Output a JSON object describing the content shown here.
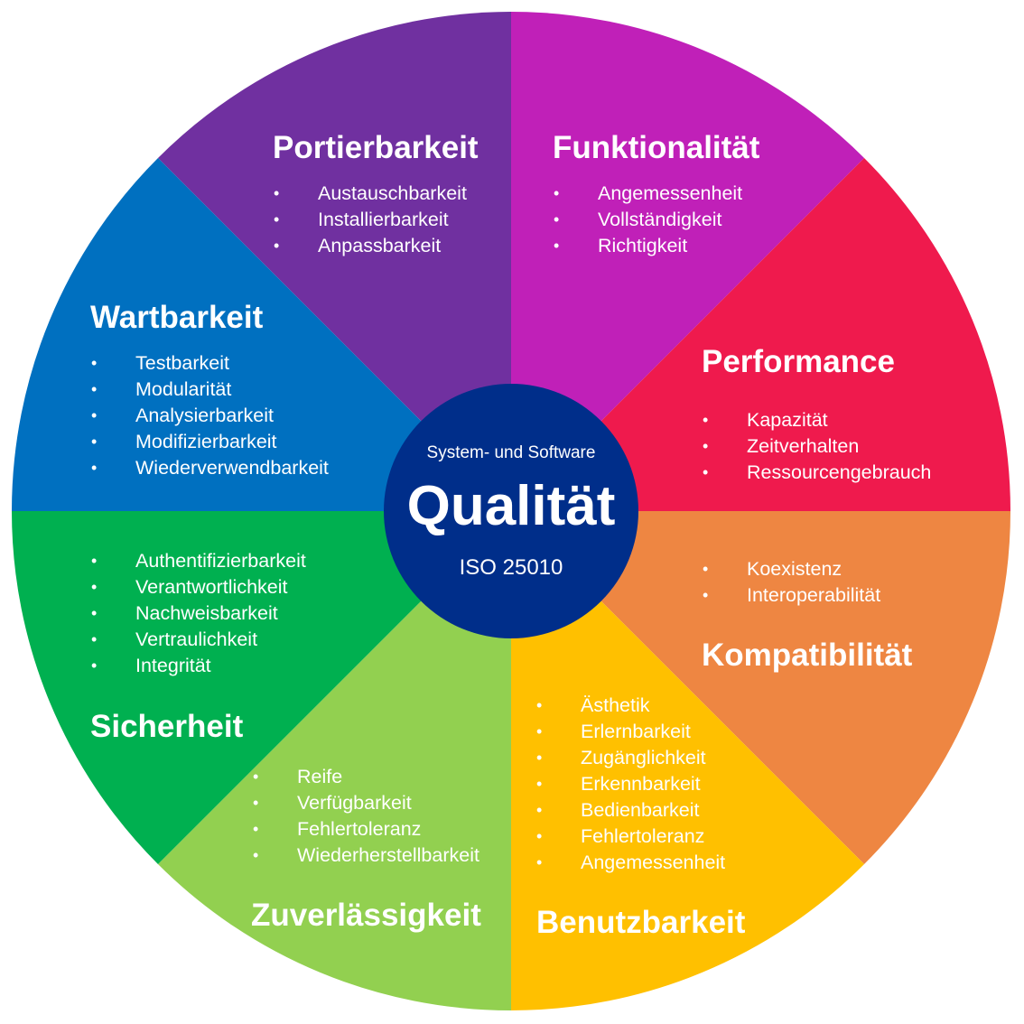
{
  "colors": {
    "portierbarkeit": "#7030A0",
    "funktionalitaet": "#C020B8",
    "performance": "#EF1A4D",
    "kompatibilitaet": "#EE8642",
    "benutzbarkeit": "#FFC000",
    "zuverlaessigkeit": "#92D050",
    "sicherheit": "#00B050",
    "wartbarkeit": "#0070C0",
    "center": "#002E8A"
  },
  "center": {
    "top": "System- und Software",
    "main": "Qualität",
    "bottom": "ISO 25010"
  },
  "segments": {
    "portierbarkeit": {
      "title": "Portierbarkeit",
      "items": [
        "Austauschbarkeit",
        "Installierbarkeit",
        "Anpassbarkeit"
      ]
    },
    "funktionalitaet": {
      "title": "Funktionalität",
      "items": [
        "Angemessenheit",
        "Vollständigkeit",
        "Richtigkeit"
      ]
    },
    "performance": {
      "title": "Performance",
      "items": [
        "Kapazität",
        "Zeitverhalten",
        "Ressourcengebrauch"
      ]
    },
    "kompatibilitaet": {
      "title": "Kompatibilität",
      "items": [
        "Koexistenz",
        "Interoperabilität"
      ]
    },
    "benutzbarkeit": {
      "title": "Benutzbarkeit",
      "items": [
        "Ästhetik",
        "Erlernbarkeit",
        "Zugänglichkeit",
        "Erkennbarkeit",
        "Bedienbarkeit",
        "Fehlertoleranz",
        "Angemessenheit"
      ]
    },
    "zuverlaessigkeit": {
      "title": "Zuverlässigkeit",
      "items": [
        "Reife",
        "Verfügbarkeit",
        "Fehlertoleranz",
        "Wiederherstellbarkeit"
      ]
    },
    "sicherheit": {
      "title": "Sicherheit",
      "items": [
        "Authentifizierbarkeit",
        "Verantwortlichkeit",
        "Nachweisbarkeit",
        "Vertraulichkeit",
        "Integrität"
      ]
    },
    "wartbarkeit": {
      "title": "Wartbarkeit",
      "items": [
        "Testbarkeit",
        "Modularität",
        "Analysierbarkeit",
        "Modifizierbarkeit",
        "Wiederverwendbarkeit"
      ]
    }
  }
}
